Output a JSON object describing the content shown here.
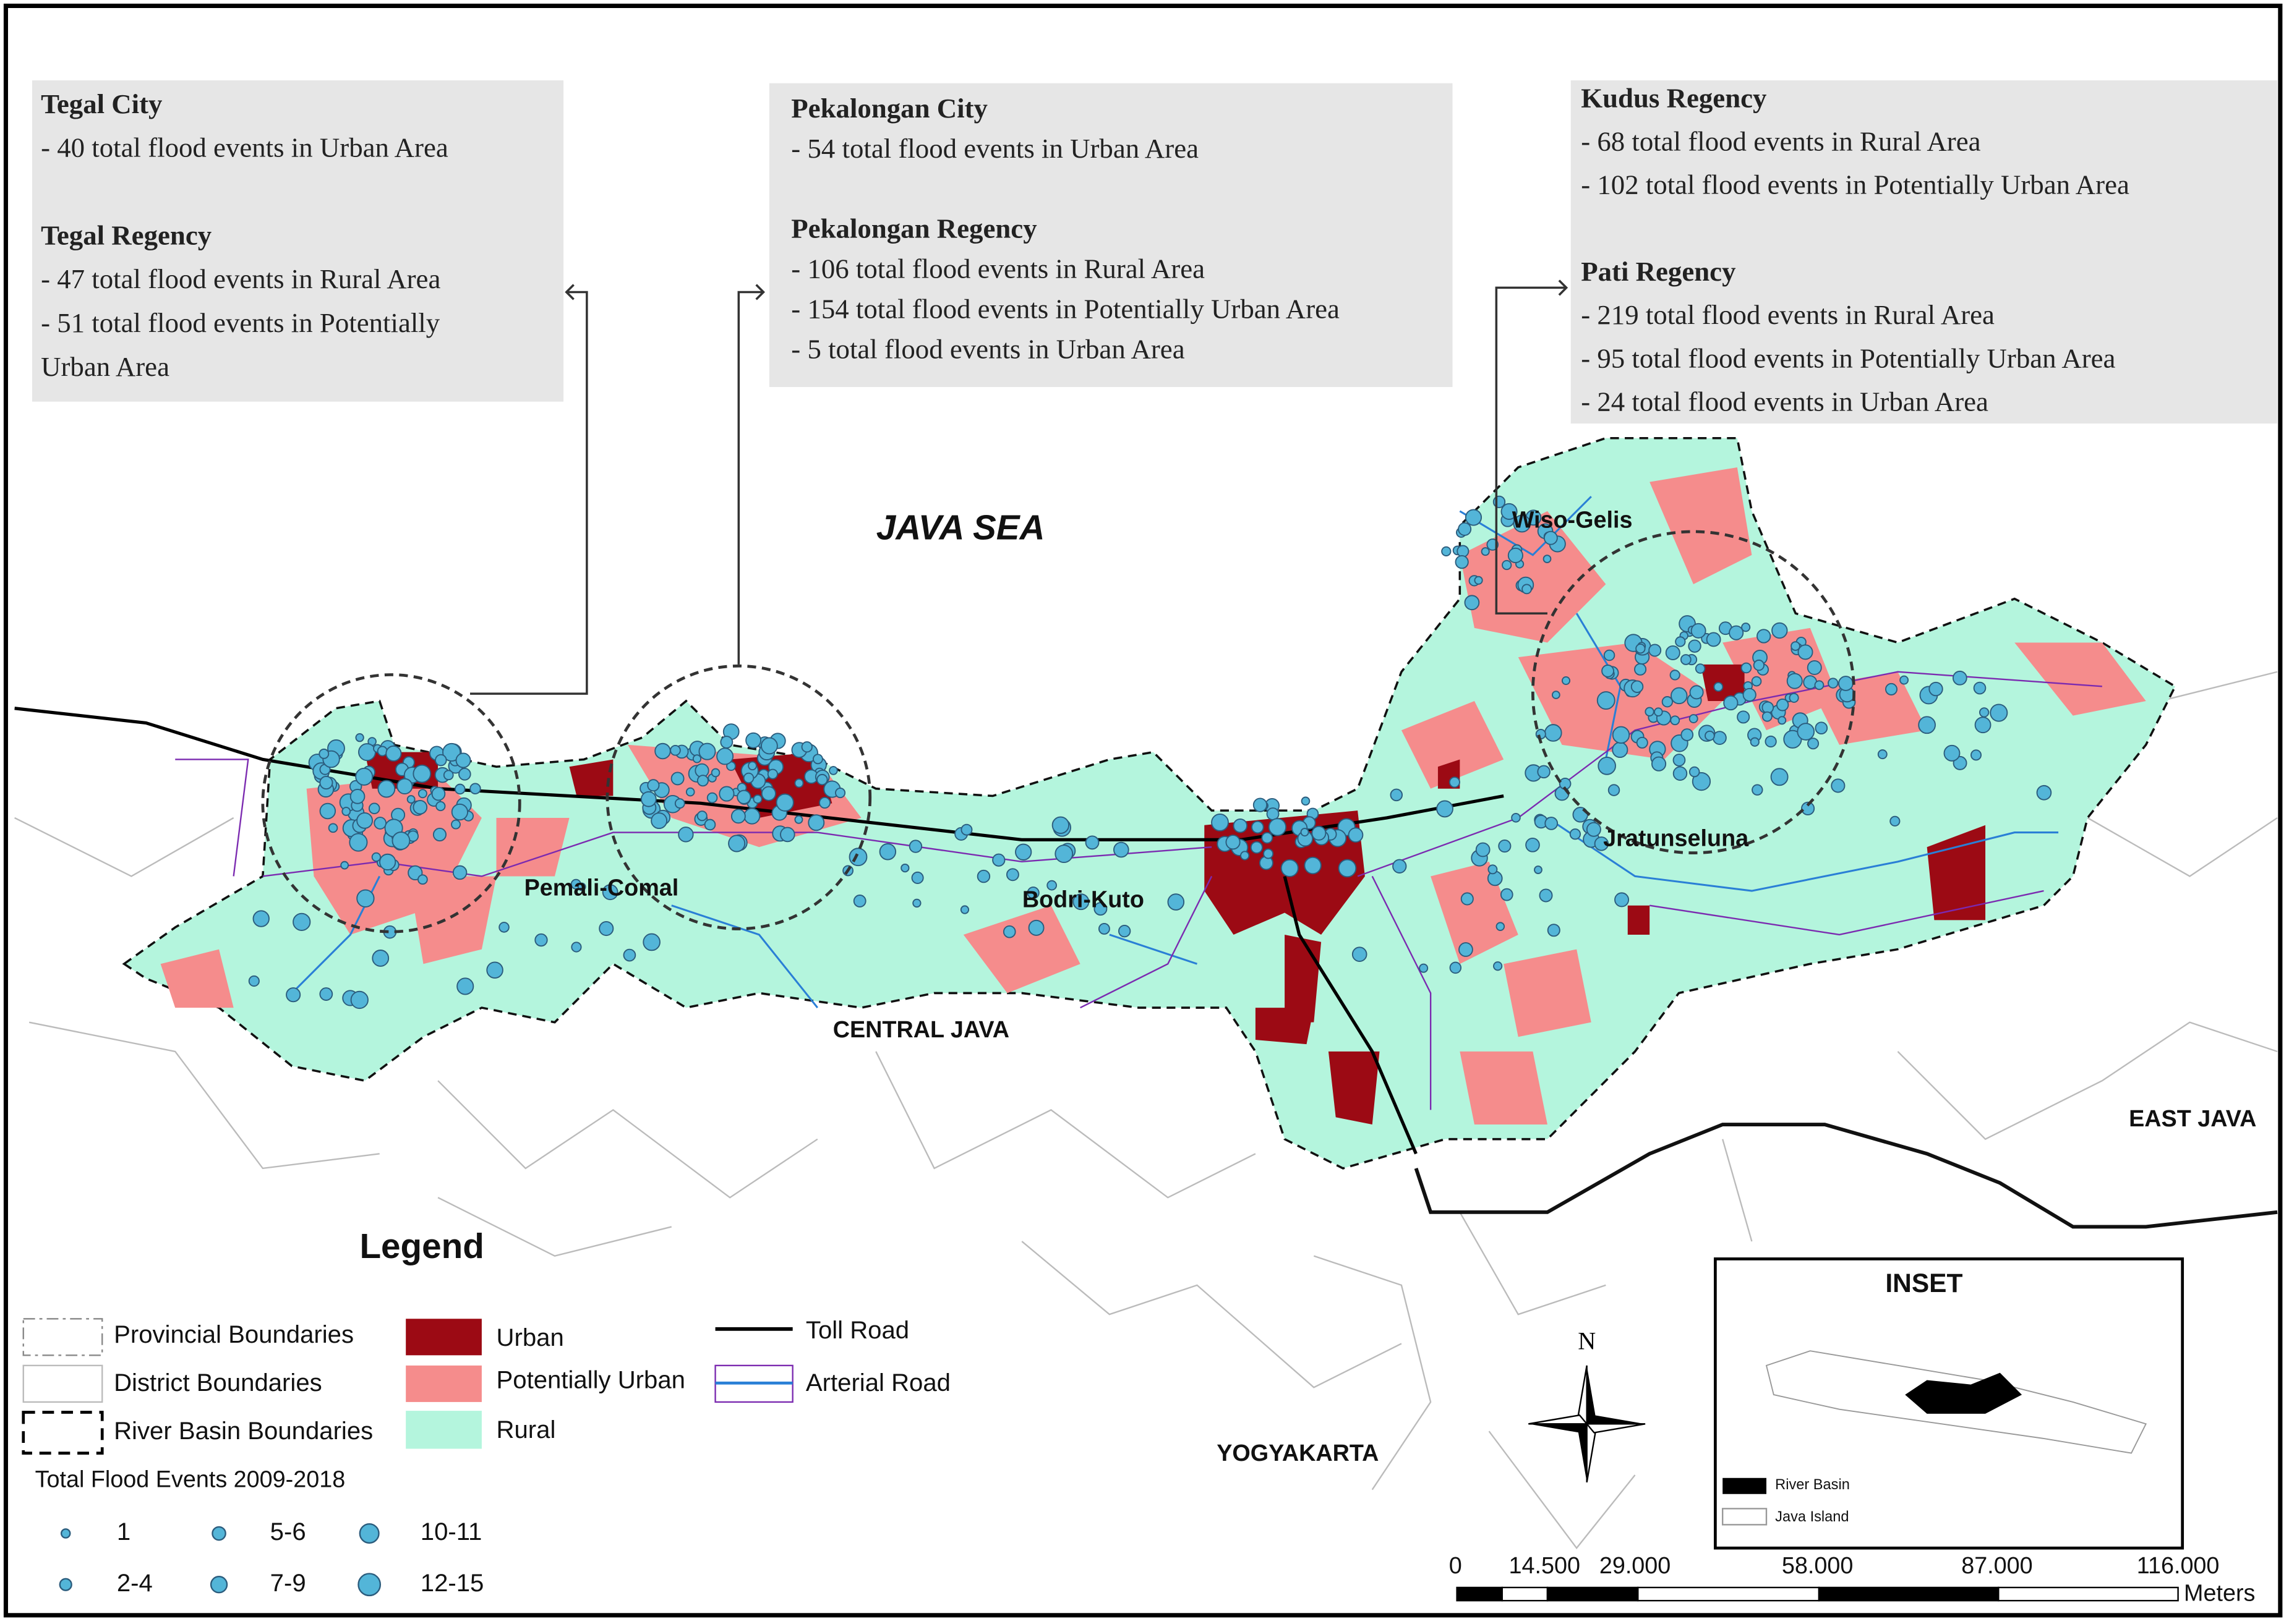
{
  "callouts": [
    {
      "sections": [
        {
          "title": "Tegal City",
          "lines": [
            "- 40 total flood events in Urban Area"
          ]
        },
        {
          "title": "Tegal Regency",
          "lines": [
            "- 47 total flood events in Rural Area",
            "- 51 total flood events in Potentially",
            "Urban Area"
          ]
        }
      ]
    },
    {
      "sections": [
        {
          "title": "Pekalongan City",
          "lines": [
            "- 54 total flood events in Urban Area"
          ]
        },
        {
          "title": "Pekalongan Regency",
          "lines": [
            "- 106 total flood events in Rural Area",
            "- 154 total flood events in Potentially Urban Area",
            "- 5 total flood events in Urban Area"
          ]
        }
      ]
    },
    {
      "sections": [
        {
          "title": "Kudus Regency",
          "lines": [
            "- 68 total flood events in Rural Area",
            "- 102 total flood events in Potentially Urban Area"
          ]
        },
        {
          "title": "Pati Regency",
          "lines": [
            "- 219 total flood events in Rural Area",
            "- 95 total flood events in Potentially  Urban Area",
            "- 24 total flood events in Urban Area"
          ]
        }
      ]
    }
  ],
  "map_labels": {
    "sea": "JAVA SEA",
    "basins": [
      "Wiso-Gelis",
      "Jratunseluna",
      "Pemali-Comal",
      "Bodri-Kuto"
    ],
    "provinces": [
      "CENTRAL JAVA",
      "EAST JAVA",
      "YOGYAKARTA"
    ]
  },
  "legend": {
    "title": "Legend",
    "boundaries": [
      "Provincial Boundaries",
      "District Boundaries",
      "River Basin Boundaries"
    ],
    "land_use": [
      "Urban",
      "Potentially Urban",
      "Rural"
    ],
    "roads": [
      "Toll Road",
      "Arterial Road"
    ],
    "flood_title": "Total Flood Events 2009-2018",
    "flood_sizes": [
      "1",
      "2-4",
      "5-6",
      "7-9",
      "10-11",
      "12-15"
    ]
  },
  "north": "N",
  "inset": {
    "title": "INSET",
    "items": [
      "River Basin",
      "Java Island"
    ]
  },
  "scale": {
    "labels": [
      "0",
      "14.500",
      "29.000",
      "58.000",
      "87.000",
      "116.000"
    ],
    "unit": "Meters"
  }
}
